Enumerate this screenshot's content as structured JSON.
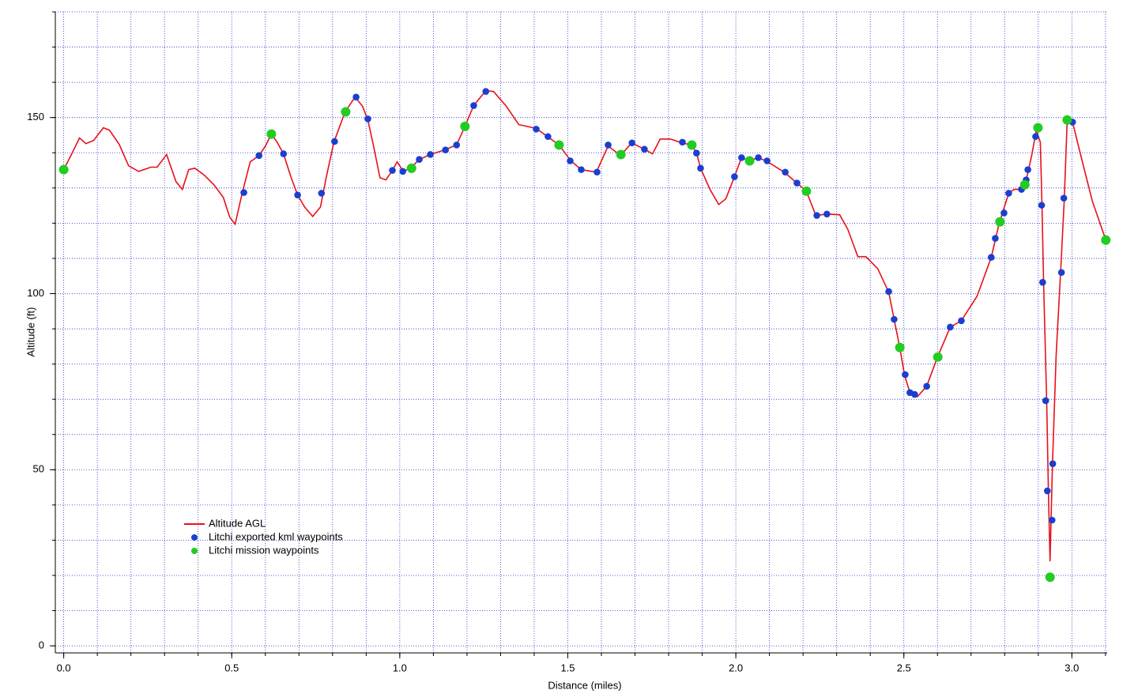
{
  "chart_data": {
    "type": "line",
    "xlabel": "Distance (miles)",
    "ylabel": "Altitude (ft)",
    "xlim": [
      -0.025,
      3.105
    ],
    "ylim": [
      -2,
      180
    ],
    "xticks": [
      {
        "value": 0,
        "label": "0.0"
      },
      0.5,
      {
        "value": 1,
        "label": "1.0"
      },
      1.5,
      {
        "value": 2,
        "label": "2.0"
      },
      2.5,
      {
        "value": 3,
        "label": "3.0"
      }
    ],
    "yticks": [
      0,
      50,
      100,
      150
    ],
    "x_minor_step": 0.1,
    "y_minor_step": 10,
    "grid": true,
    "legend": "lower-left",
    "series": [
      {
        "name": "Altitude AGL",
        "mode": "line",
        "color": "#e8101a",
        "x": [
          0,
          0.024,
          0.047,
          0.066,
          0.089,
          0.118,
          0.136,
          0.165,
          0.193,
          0.223,
          0.259,
          0.278,
          0.306,
          0.334,
          0.353,
          0.372,
          0.39,
          0.419,
          0.447,
          0.475,
          0.494,
          0.51,
          0.531,
          0.555,
          0.581,
          0.6,
          0.618,
          0.635,
          0.654,
          0.677,
          0.696,
          0.717,
          0.741,
          0.764,
          0.781,
          0.804,
          0.837,
          0.867,
          0.889,
          0.905,
          0.922,
          0.941,
          0.959,
          0.978,
          0.992,
          1.011,
          1.035,
          1.058,
          1.091,
          1.133,
          1.169,
          1.194,
          1.22,
          1.256,
          1.279,
          1.317,
          1.354,
          1.406,
          1.439,
          1.474,
          1.509,
          1.54,
          1.585,
          1.62,
          1.657,
          1.69,
          1.728,
          1.752,
          1.775,
          1.806,
          1.839,
          1.869,
          1.883,
          1.895,
          1.923,
          1.949,
          1.97,
          1.996,
          2.017,
          2.041,
          2.066,
          2.09,
          2.144,
          2.182,
          2.21,
          2.238,
          2.271,
          2.309,
          2.333,
          2.363,
          2.387,
          2.422,
          2.455,
          2.471,
          2.488,
          2.502,
          2.518,
          2.54,
          2.568,
          2.6,
          2.638,
          2.671,
          2.718,
          2.76,
          2.784,
          2.812,
          2.828,
          2.849,
          2.863,
          2.88,
          2.894,
          2.906,
          2.911,
          2.916,
          2.925,
          2.93,
          2.935,
          2.942,
          2.953,
          2.967,
          2.977,
          2.986,
          3.002,
          3.028,
          3.061,
          3.101
        ],
        "values": [
          135.2,
          139.7,
          144.2,
          142.6,
          143.5,
          147.1,
          146.4,
          142.4,
          136.3,
          134.7,
          135.9,
          135.9,
          139.5,
          131.8,
          129.6,
          135.2,
          135.6,
          133.6,
          130.9,
          127.3,
          121.7,
          119.7,
          128.5,
          137.4,
          139.2,
          141.9,
          145.3,
          143,
          139.7,
          132.9,
          128,
          124.6,
          121.9,
          124.6,
          132.9,
          143,
          151.6,
          155.8,
          153.2,
          149.3,
          141.9,
          132.9,
          132.3,
          135,
          137.4,
          134.7,
          135.9,
          138.1,
          139.5,
          140.8,
          142.2,
          147.5,
          153.4,
          157.6,
          157.4,
          153.2,
          148,
          146.9,
          144.6,
          142.2,
          137.7,
          135.2,
          134.5,
          141.9,
          139.2,
          142.8,
          141,
          139.7,
          143.9,
          143.9,
          142.8,
          142.2,
          139.9,
          135.6,
          129.6,
          125.3,
          126.9,
          133.2,
          138.6,
          137.7,
          138.6,
          137.7,
          134.5,
          131.4,
          129.1,
          122.2,
          122.6,
          122.4,
          118.3,
          110.5,
          110.5,
          107.1,
          100.4,
          92.7,
          84.7,
          76.8,
          71.9,
          70.7,
          73.7,
          82,
          90.5,
          92.3,
          99.3,
          110.3,
          120.1,
          128.5,
          129.6,
          129.6,
          131.8,
          139,
          146.4,
          143,
          125.1,
          102.6,
          68.9,
          44.2,
          24,
          51,
          82.4,
          107.1,
          126.2,
          149.1,
          148.7,
          138.6,
          126.2,
          115.2
        ]
      },
      {
        "name": "Litchi exported kml waypoints",
        "mode": "scatter",
        "color": "#1a3fd0",
        "x": [
          0.536,
          0.581,
          0.654,
          0.696,
          0.767,
          0.806,
          0.87,
          0.905,
          0.978,
          1.009,
          1.058,
          1.091,
          1.136,
          1.169,
          1.22,
          1.256,
          1.406,
          1.441,
          1.507,
          1.54,
          1.587,
          1.62,
          1.691,
          1.728,
          1.841,
          1.883,
          1.895,
          1.996,
          2.017,
          2.067,
          2.093,
          2.147,
          2.182,
          2.241,
          2.271,
          2.455,
          2.471,
          2.504,
          2.518,
          2.532,
          2.568,
          2.638,
          2.671,
          2.76,
          2.772,
          2.798,
          2.812,
          2.85,
          2.864,
          2.869,
          2.892,
          2.91,
          2.913,
          2.922,
          2.927,
          2.941,
          2.943,
          2.969,
          2.976,
          3.002
        ],
        "values": [
          128.7,
          139.2,
          139.7,
          128,
          128.5,
          143.2,
          155.8,
          149.6,
          135,
          134.7,
          138.1,
          139.5,
          140.8,
          142.2,
          153.4,
          157.4,
          146.7,
          144.6,
          137.7,
          135.2,
          134.5,
          142.2,
          142.8,
          141,
          143,
          139.9,
          135.6,
          133.2,
          138.6,
          138.6,
          137.7,
          134.5,
          131.4,
          122.2,
          122.6,
          100.6,
          92.7,
          77,
          71.9,
          71.4,
          73.7,
          90.5,
          92.3,
          110.3,
          115.7,
          122.9,
          128.5,
          129.6,
          132.3,
          135.2,
          144.6,
          125.1,
          103.2,
          69.6,
          44,
          35.7,
          51.7,
          106,
          127.1,
          148.7
        ]
      },
      {
        "name": "Litchi mission waypoints",
        "mode": "scatter",
        "color": "#22cc22",
        "x": [
          0,
          0.618,
          0.839,
          1.035,
          1.194,
          1.474,
          1.658,
          1.869,
          2.041,
          2.21,
          2.488,
          2.601,
          2.786,
          2.86,
          2.899,
          2.935,
          2.986,
          3.101
        ],
        "values": [
          135.2,
          145.3,
          151.6,
          135.6,
          147.5,
          142.2,
          139.5,
          142.2,
          137.7,
          129.1,
          84.7,
          82,
          120.4,
          130.9,
          147.1,
          19.5,
          149.3,
          115.2
        ]
      }
    ]
  }
}
